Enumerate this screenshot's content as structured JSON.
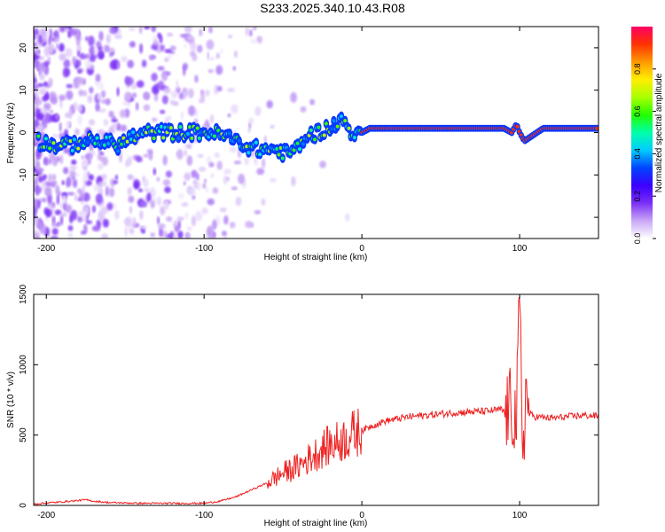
{
  "title": "S233.2025.340.10.43.R08",
  "chart_data": [
    {
      "type": "heatmap",
      "name": "spectrogram",
      "xlabel": "Height of straight line (km)",
      "ylabel": "Frequency (Hz)",
      "xlim": [
        -208,
        150
      ],
      "ylim": [
        -25,
        25
      ],
      "x_ticks": [
        -200,
        -100,
        0,
        100
      ],
      "y_ticks": [
        20,
        10,
        0,
        -10,
        -20
      ],
      "colorbar": {
        "label": "Normalized spectral amplitude",
        "range": [
          0.0,
          1.0
        ],
        "ticks": [
          0.0,
          0.2,
          0.4,
          0.6,
          0.8
        ],
        "colors": [
          "#ffffff",
          "#c9a8f5",
          "#7b2ff7",
          "#3b00ff",
          "#0044ff",
          "#00ccff",
          "#00ffaa",
          "#22ff00",
          "#aaff00",
          "#ffee00",
          "#ff9900",
          "#ff3300",
          "#ff0066"
        ]
      },
      "signal_trace": {
        "x": [
          -205,
          -195,
          -185,
          -175,
          -165,
          -155,
          -145,
          -135,
          -125,
          -115,
          -105,
          -95,
          -85,
          -75,
          -65,
          -55,
          -48,
          -42,
          -35,
          -28,
          -22,
          -16,
          -13,
          -10,
          -6,
          -3,
          0,
          5,
          20,
          40,
          60,
          80,
          90,
          95,
          98,
          100,
          103,
          107,
          115,
          130,
          150
        ],
        "y": [
          -2,
          -3,
          -3,
          -2,
          -2,
          -3,
          -1,
          0,
          0,
          0,
          0,
          0,
          -1,
          -3,
          -4,
          -4,
          -5,
          -4,
          -1,
          0,
          1,
          2,
          3,
          2,
          0,
          -1,
          0,
          1,
          1,
          1,
          1,
          1,
          1,
          0,
          2,
          0,
          -2,
          -1,
          1,
          1,
          1
        ]
      }
    },
    {
      "type": "line",
      "name": "snr",
      "xlabel": "Height of straight line (km)",
      "ylabel": "SNR (10 * v/v)",
      "xlim": [
        -208,
        150
      ],
      "ylim": [
        0,
        1500
      ],
      "x_ticks": [
        -200,
        -100,
        0,
        100
      ],
      "y_ticks": [
        0,
        500,
        1000,
        1500
      ],
      "color": "#ee2222",
      "x": [
        -208,
        -190,
        -175,
        -170,
        -160,
        -140,
        -120,
        -100,
        -90,
        -80,
        -70,
        -60,
        -50,
        -40,
        -35,
        -30,
        -25,
        -20,
        -15,
        -10,
        -5,
        0,
        5,
        10,
        15,
        20,
        30,
        40,
        50,
        60,
        70,
        80,
        88,
        92,
        95,
        98,
        100,
        102,
        104,
        106,
        110,
        120,
        130,
        140,
        150
      ],
      "y": [
        10,
        25,
        40,
        30,
        20,
        15,
        15,
        15,
        30,
        60,
        110,
        160,
        230,
        280,
        320,
        360,
        400,
        430,
        450,
        480,
        510,
        530,
        560,
        580,
        600,
        610,
        630,
        640,
        650,
        660,
        665,
        670,
        680,
        660,
        700,
        600,
        1450,
        400,
        800,
        650,
        630,
        620,
        630,
        640,
        635
      ]
    }
  ]
}
